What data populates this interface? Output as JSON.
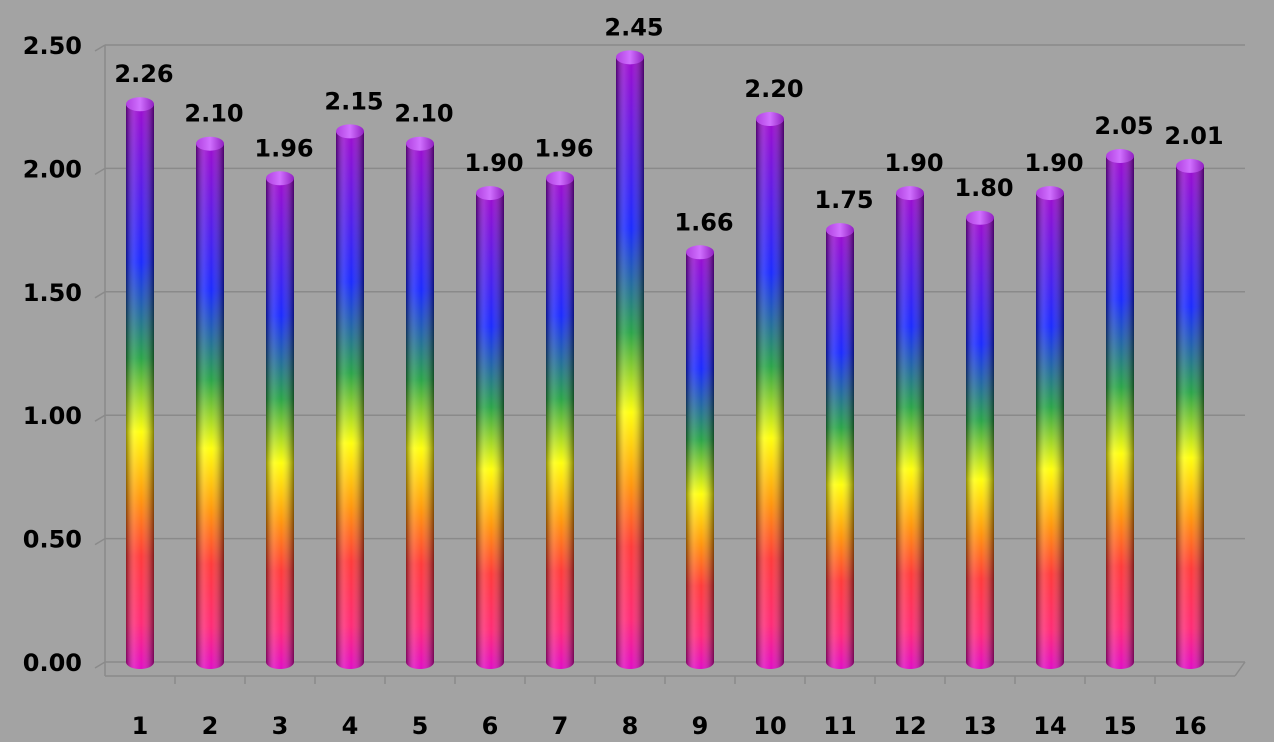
{
  "chart_data": {
    "type": "bar",
    "title": "",
    "xlabel": "",
    "ylabel": "",
    "categories": [
      "1",
      "2",
      "3",
      "4",
      "5",
      "6",
      "7",
      "8",
      "9",
      "10",
      "11",
      "12",
      "13",
      "14",
      "15",
      "16"
    ],
    "values": [
      2.26,
      2.1,
      1.96,
      2.15,
      2.1,
      1.9,
      1.96,
      2.45,
      1.66,
      2.2,
      1.75,
      1.9,
      1.8,
      1.9,
      2.05,
      2.01
    ],
    "data_labels": [
      "2.26",
      "2.10",
      "1.96",
      "2.15",
      "2.10",
      "1.90",
      "1.96",
      "2.45",
      "1.66",
      "2.20",
      "1.75",
      "1.90",
      "1.80",
      "1.90",
      "2.05",
      "2.01"
    ],
    "ylim": [
      0,
      2.5
    ],
    "yticks": [
      "0.00",
      "0.50",
      "1.00",
      "1.50",
      "2.00",
      "2.50"
    ],
    "grid": true,
    "legend": "none",
    "colors": {
      "background": "#a3a3a3",
      "gridline": "#8a8a8a",
      "gradient_top": "#9900cc",
      "gradient_blue": "#1020ff",
      "gradient_green": "#20a040",
      "gradient_yellow": "#ffff00",
      "gradient_orange": "#ff9000",
      "gradient_red": "#ff3030",
      "gradient_bottom": "#e000c0"
    }
  }
}
